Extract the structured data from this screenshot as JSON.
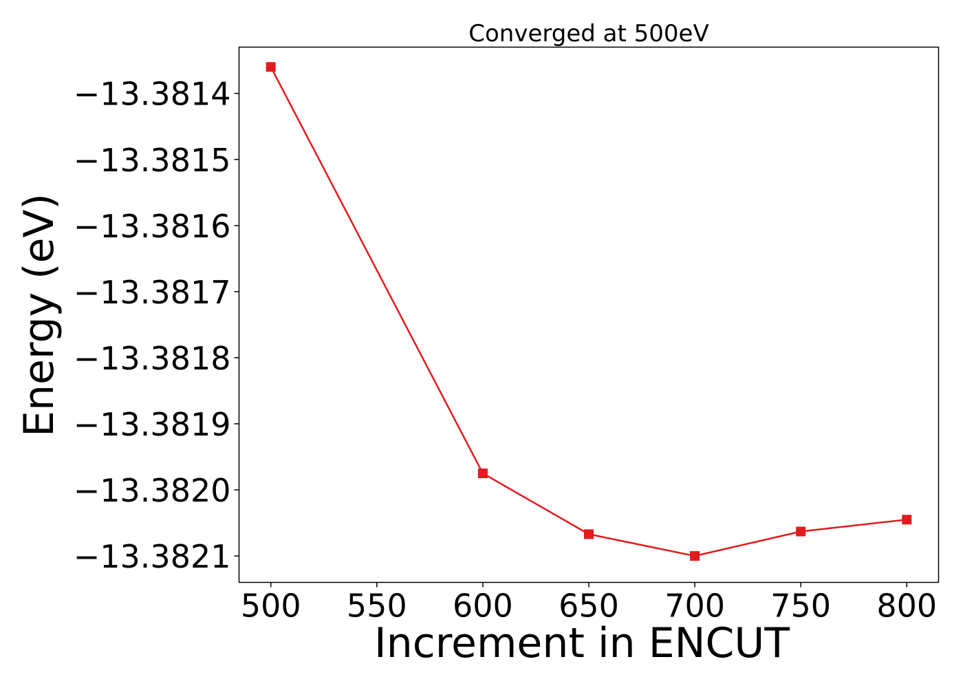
{
  "chart_data": {
    "type": "line",
    "title": "Converged at 500eV",
    "xlabel": "Increment in ENCUT",
    "ylabel": "Energy (eV)",
    "xlim": [
      485,
      815
    ],
    "ylim": [
      -13.38214,
      -13.38133
    ],
    "x_ticks": [
      500,
      550,
      600,
      650,
      700,
      750,
      800
    ],
    "x_tick_labels": [
      "500",
      "550",
      "600",
      "650",
      "700",
      "750",
      "800"
    ],
    "y_ticks": [
      -13.3814,
      -13.3815,
      -13.3816,
      -13.3817,
      -13.3818,
      -13.3819,
      -13.382,
      -13.3821
    ],
    "y_tick_labels": [
      "−13.3814",
      "−13.3815",
      "−13.3816",
      "−13.3817",
      "−13.3818",
      "−13.3819",
      "−13.3820",
      "−13.3821"
    ],
    "grid": false,
    "series": [
      {
        "color": "#e41a1c",
        "marker": "square",
        "x": [
          500,
          600,
          650,
          700,
          750,
          800
        ],
        "y": [
          -13.38136,
          -13.381975,
          -13.382067,
          -13.3821,
          -13.382063,
          -13.382045
        ]
      }
    ]
  }
}
